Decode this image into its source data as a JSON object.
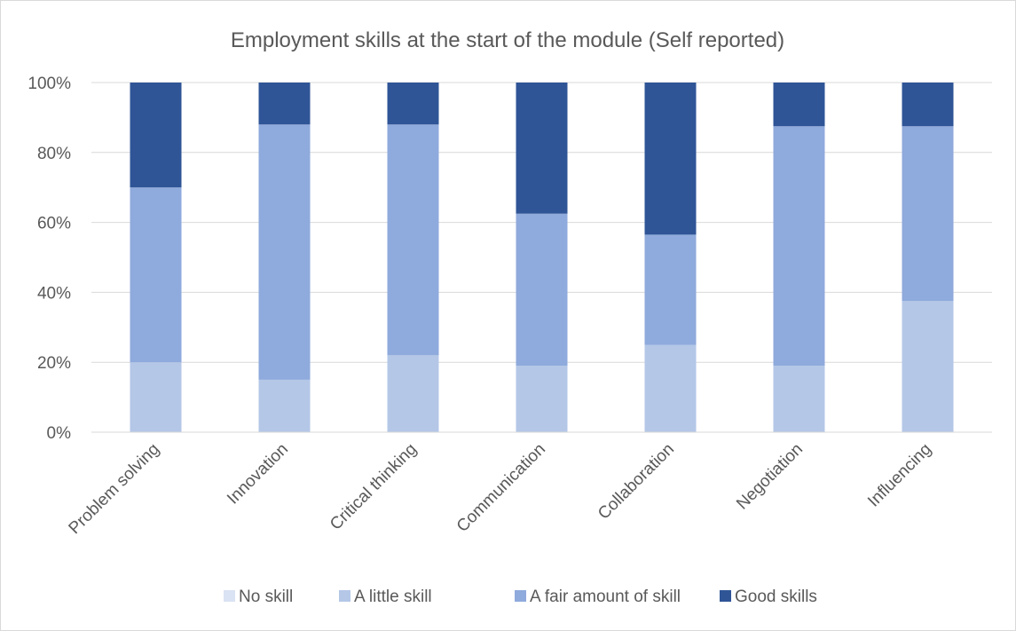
{
  "chart_data": {
    "type": "bar",
    "stacked": true,
    "percent": true,
    "title": "Employment skills at the start of the module (Self reported)",
    "xlabel": "",
    "ylabel": "",
    "ylim": [
      0,
      100
    ],
    "y_ticks": [
      "0%",
      "20%",
      "40%",
      "60%",
      "80%",
      "100%"
    ],
    "grid": true,
    "legend_position": "bottom",
    "categories": [
      "Problem solving",
      "Innovation",
      "Critical thinking",
      "Communication",
      "Collaboration",
      "Negotiation",
      "Influencing"
    ],
    "series": [
      {
        "name": "No skill",
        "color": "#dae3f3",
        "values": [
          0,
          0,
          0,
          0,
          0,
          0,
          0
        ]
      },
      {
        "name": "A little skill",
        "color": "#b4c7e7",
        "values": [
          20,
          15,
          22,
          19,
          25,
          19,
          37.5
        ]
      },
      {
        "name": "A fair amount of skill",
        "color": "#8faadc",
        "values": [
          50,
          73,
          66,
          43.5,
          31.5,
          68.5,
          50
        ]
      },
      {
        "name": "Good skills",
        "color": "#2f5597",
        "values": [
          30,
          12,
          12,
          37.5,
          43.5,
          12.5,
          12.5
        ]
      }
    ]
  }
}
